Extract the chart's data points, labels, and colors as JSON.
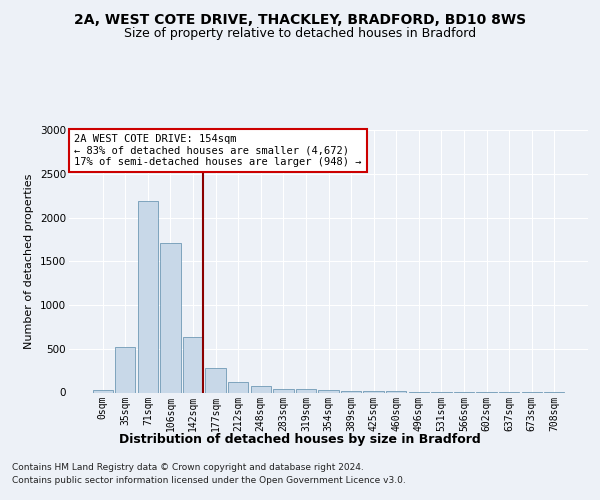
{
  "title_line1": "2A, WEST COTE DRIVE, THACKLEY, BRADFORD, BD10 8WS",
  "title_line2": "Size of property relative to detached houses in Bradford",
  "xlabel": "Distribution of detached houses by size in Bradford",
  "ylabel": "Number of detached properties",
  "bar_labels": [
    "0sqm",
    "35sqm",
    "71sqm",
    "106sqm",
    "142sqm",
    "177sqm",
    "212sqm",
    "248sqm",
    "283sqm",
    "319sqm",
    "354sqm",
    "389sqm",
    "425sqm",
    "460sqm",
    "496sqm",
    "531sqm",
    "566sqm",
    "602sqm",
    "637sqm",
    "673sqm",
    "708sqm"
  ],
  "bar_values": [
    30,
    520,
    2190,
    1710,
    635,
    285,
    125,
    70,
    45,
    35,
    25,
    20,
    20,
    15,
    5,
    5,
    5,
    5,
    5,
    5,
    5
  ],
  "bar_color": "#c8d8e8",
  "bar_edge_color": "#5a8aaa",
  "vline_color": "#8b0000",
  "vline_x": 4.42,
  "annotation_title": "2A WEST COTE DRIVE: 154sqm",
  "annotation_line1": "← 83% of detached houses are smaller (4,672)",
  "annotation_line2": "17% of semi-detached houses are larger (948) →",
  "annotation_box_color": "#ffffff",
  "annotation_box_edge": "#cc0000",
  "ylim": [
    0,
    3000
  ],
  "yticks": [
    0,
    500,
    1000,
    1500,
    2000,
    2500,
    3000
  ],
  "footnote1": "Contains HM Land Registry data © Crown copyright and database right 2024.",
  "footnote2": "Contains public sector information licensed under the Open Government Licence v3.0.",
  "bg_color": "#edf1f7",
  "plot_bg_color": "#edf1f7",
  "grid_color": "#ffffff",
  "title_fontsize": 10,
  "subtitle_fontsize": 9,
  "ylabel_fontsize": 8,
  "xlabel_fontsize": 9,
  "tick_fontsize": 7,
  "footnote_fontsize": 6.5
}
